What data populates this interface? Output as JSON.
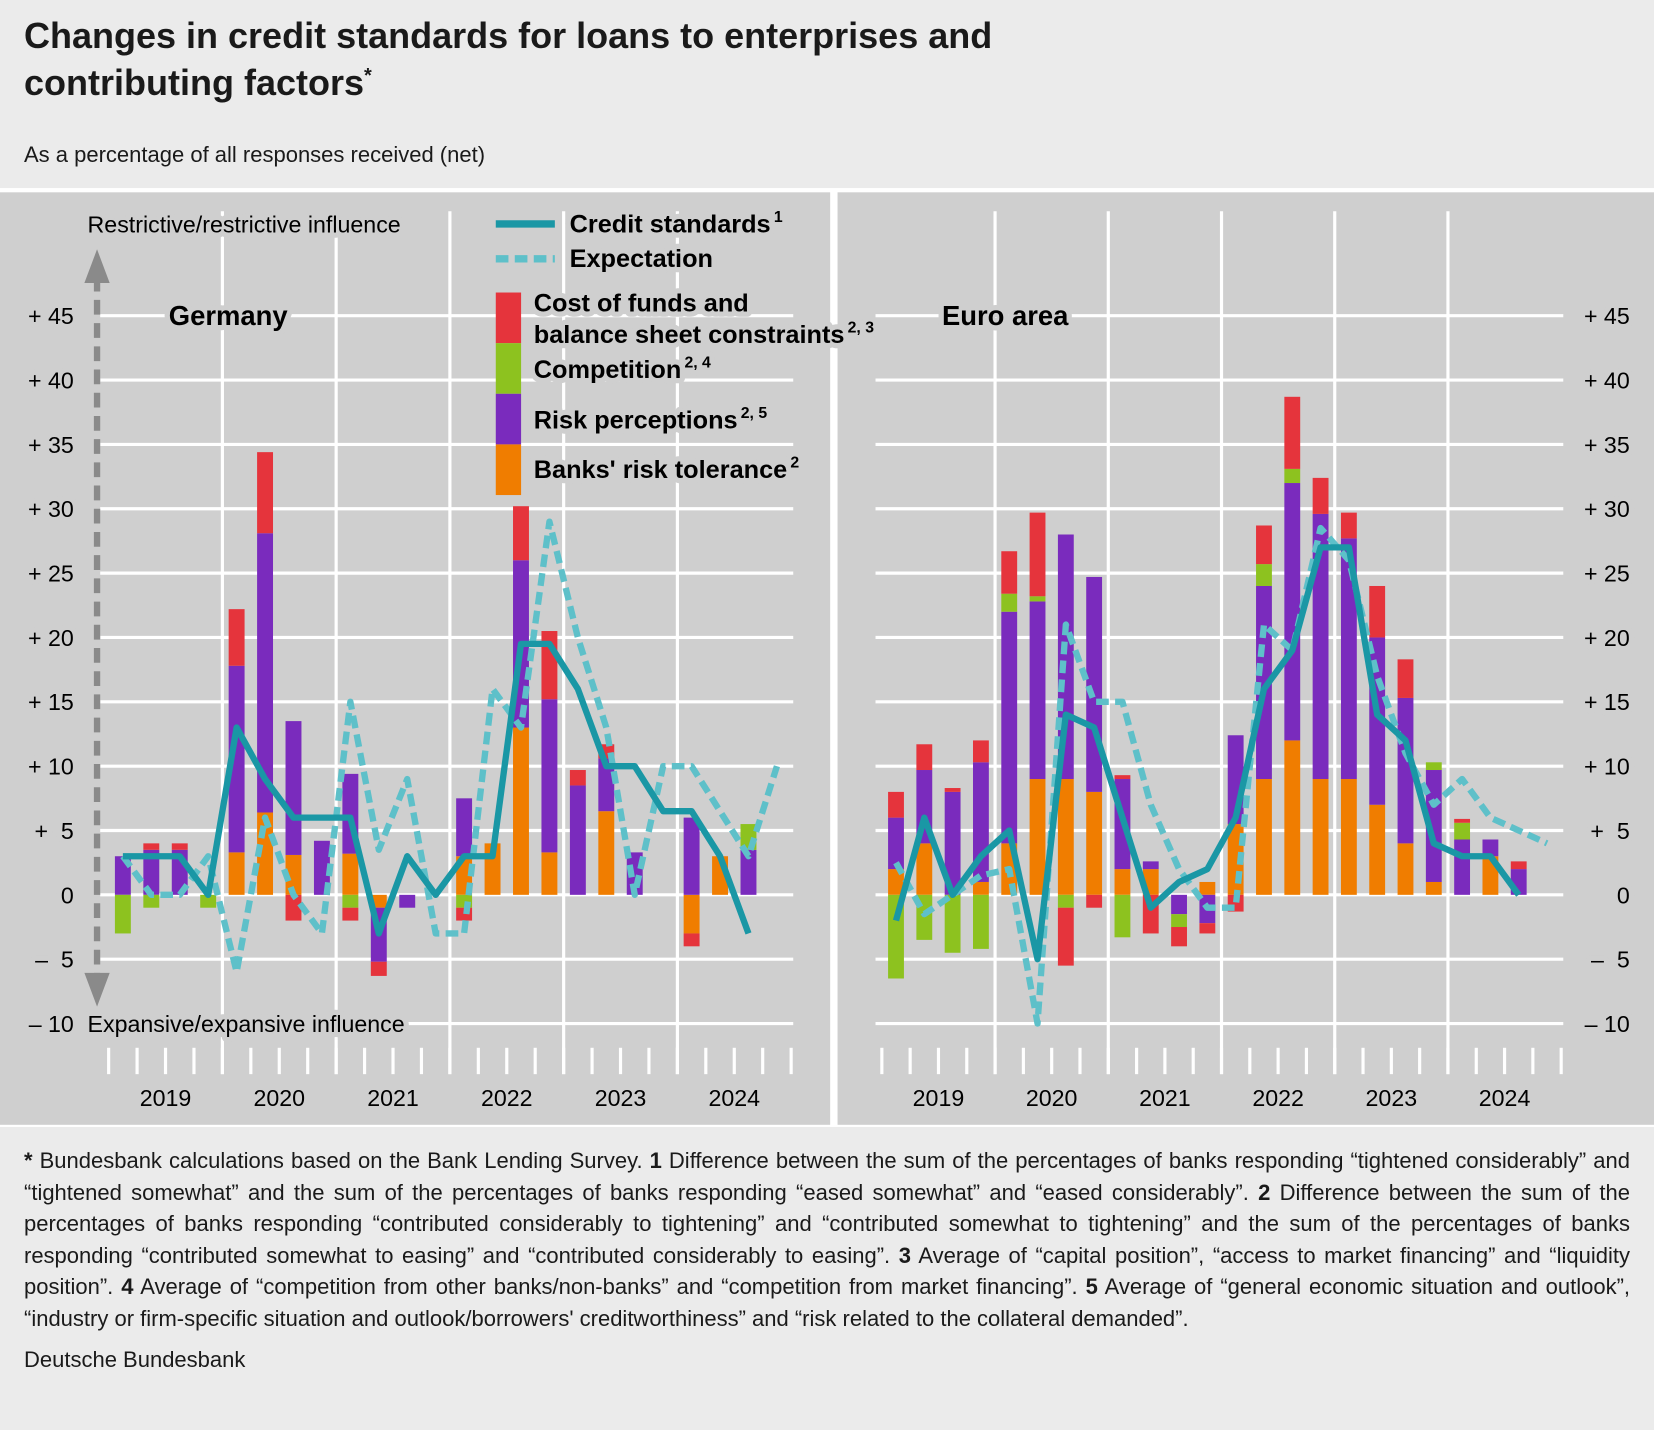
{
  "title": "Changes in credit standards for loans to enterprises and contributing factors",
  "title_marker": "*",
  "subtitle": "As a percentage of all responses received (net)",
  "chart_data": [
    {
      "type": "bar",
      "stacked": true,
      "title": "Germany",
      "annotations": {
        "top": "Restrictive/restrictive influence",
        "bottom": "Expansive/expansive influence"
      },
      "categories": [
        null,
        null,
        null,
        null,
        null,
        null,
        null,
        null,
        null,
        null,
        null,
        null,
        null,
        null,
        null,
        null,
        null,
        null,
        null,
        null,
        null,
        null,
        null,
        null
      ],
      "x_groups": [
        "2019",
        "2020",
        "2021",
        "2022",
        "2023",
        "2024"
      ],
      "ylim": [
        -12,
        54
      ],
      "yticks": [
        {
          "value": 45,
          "label": "+ 45"
        },
        {
          "value": 40,
          "label": "+ 40"
        },
        {
          "value": 35,
          "label": "+ 35"
        },
        {
          "value": 30,
          "label": "+ 30"
        },
        {
          "value": 25,
          "label": "+ 25"
        },
        {
          "value": 20,
          "label": "+ 20"
        },
        {
          "value": 15,
          "label": "+ 15"
        },
        {
          "value": 10,
          "label": "+ 10"
        },
        {
          "value": 5,
          "label": "+  5"
        },
        0,
        {
          "value": -5,
          "label": "–  5"
        },
        {
          "value": -10,
          "label": "– 10"
        }
      ],
      "grid": true,
      "series": [
        {
          "name": "Credit standards",
          "note": "1",
          "kind": "line",
          "color": "#1a97a5",
          "values": [
            3,
            3,
            3,
            0,
            13,
            9,
            6,
            6,
            6,
            -3,
            3,
            0,
            3,
            3,
            19.5,
            19.5,
            16,
            10,
            10,
            6.5,
            6.5,
            3,
            -3,
            null
          ]
        },
        {
          "name": "Expectation",
          "kind": "dashed",
          "color": "#5ec0c9",
          "values": [
            3,
            0,
            0,
            3,
            -6,
            6,
            0,
            -3,
            15,
            3.5,
            9,
            -3,
            -3,
            16,
            13,
            29,
            20,
            13,
            0,
            10,
            10,
            6.5,
            3,
            10
          ]
        },
        {
          "name": "Cost of funds and balance sheet constraints",
          "note": "2, 3",
          "kind": "bar",
          "color": "#e5343c",
          "values": [
            0,
            0.5,
            0.5,
            0,
            4.4,
            6.3,
            -2,
            0,
            -1,
            -1.1,
            0,
            0,
            -1,
            0,
            4.2,
            5.3,
            1.2,
            1.1,
            0,
            0,
            -1,
            0,
            0,
            null
          ]
        },
        {
          "name": "Competition",
          "note": "2, 4",
          "kind": "bar",
          "color": "#8dc21f",
          "values": [
            -3,
            -1,
            0,
            -1,
            0,
            0,
            0,
            0,
            -1,
            0,
            0,
            0,
            -1,
            0,
            0,
            0,
            0,
            0,
            0,
            0,
            0,
            0,
            2,
            null
          ]
        },
        {
          "name": "Risk perceptions",
          "note": "2, 5",
          "kind": "bar",
          "color": "#7a2bbd",
          "values": [
            3,
            3.5,
            3.5,
            0,
            14.5,
            21.7,
            10.4,
            4.2,
            6.2,
            -4.2,
            -1,
            0,
            4.5,
            0,
            13,
            11.9,
            8.5,
            4.1,
            3.3,
            0,
            6,
            0,
            3.5,
            null
          ]
        },
        {
          "name": "Banks' risk tolerance",
          "note": "2",
          "kind": "bar",
          "color": "#f07d00",
          "values": [
            0,
            0,
            0,
            0,
            3.3,
            6.4,
            3.1,
            0,
            3.2,
            -1,
            0,
            0,
            3,
            4,
            13,
            3.3,
            0,
            6.5,
            0,
            0,
            -3,
            3,
            0,
            null
          ]
        }
      ]
    },
    {
      "type": "bar",
      "stacked": true,
      "title": "Euro area",
      "categories": [
        null,
        null,
        null,
        null,
        null,
        null,
        null,
        null,
        null,
        null,
        null,
        null,
        null,
        null,
        null,
        null,
        null,
        null,
        null,
        null,
        null,
        null,
        null,
        null
      ],
      "x_groups": [
        "2019",
        "2020",
        "2021",
        "2022",
        "2023",
        "2024"
      ],
      "ylim": [
        -12,
        54
      ],
      "yticks": [
        {
          "value": 45,
          "label": "+ 45"
        },
        {
          "value": 40,
          "label": "+ 40"
        },
        {
          "value": 35,
          "label": "+ 35"
        },
        {
          "value": 30,
          "label": "+ 30"
        },
        {
          "value": 25,
          "label": "+ 25"
        },
        {
          "value": 20,
          "label": "+ 20"
        },
        {
          "value": 15,
          "label": "+ 15"
        },
        {
          "value": 10,
          "label": "+ 10"
        },
        {
          "value": 5,
          "label": "+  5"
        },
        0,
        {
          "value": -5,
          "label": "–  5"
        },
        {
          "value": -10,
          "label": "– 10"
        }
      ],
      "grid": true,
      "series": [
        {
          "kind": "line",
          "color": "#1a97a5",
          "values": [
            -2,
            6,
            0,
            3,
            5,
            -5,
            14,
            13,
            6,
            -1,
            1,
            2,
            6,
            16,
            19,
            27,
            27,
            14,
            12,
            4,
            3,
            3,
            0,
            null
          ]
        },
        {
          "kind": "dashed",
          "color": "#5ec0c9",
          "values": [
            2.5,
            -1.5,
            0,
            1.5,
            2,
            -10,
            21,
            15,
            15,
            7,
            2,
            -1,
            -1,
            21,
            19,
            28.5,
            26,
            17,
            11,
            7,
            9,
            6,
            5,
            4
          ]
        },
        {
          "kind": "bar",
          "color": "#e5343c",
          "values": [
            2,
            2,
            0.3,
            1.7,
            3.3,
            6.5,
            -4.5,
            -1,
            0.3,
            -3,
            -1.5,
            -0.8,
            -1.3,
            3,
            5.6,
            2.8,
            2,
            4,
            3,
            0,
            0.3,
            0,
            0.6,
            null
          ]
        },
        {
          "kind": "bar",
          "color": "#8dc21f",
          "values": [
            -6.5,
            -3.5,
            -4.5,
            -4.2,
            1.4,
            0.4,
            -1,
            0,
            -3.3,
            0,
            -1,
            0,
            0,
            1.7,
            1.1,
            0,
            0,
            0,
            0,
            0.6,
            1.3,
            0,
            0,
            null
          ]
        },
        {
          "kind": "bar",
          "color": "#7a2bbd",
          "values": [
            4,
            5.7,
            8,
            9.3,
            18,
            13.8,
            19,
            16.7,
            7,
            0.6,
            -1.5,
            -2.2,
            6.9,
            15,
            20,
            20.6,
            18.7,
            13,
            11.3,
            8.7,
            4.3,
            1.3,
            2,
            null
          ]
        },
        {
          "kind": "bar",
          "color": "#f07d00",
          "values": [
            2,
            4,
            0,
            1,
            4,
            9,
            9,
            8,
            2,
            2,
            0,
            1,
            5.5,
            9,
            12,
            9,
            9,
            7,
            4,
            1,
            0,
            3,
            0,
            null
          ]
        }
      ]
    }
  ],
  "footnotes": [
    {
      "marker": "*",
      "text": "Bundesbank calculations based on the Bank Lending Survey."
    },
    {
      "marker": "1",
      "text": "Difference between the sum of the percentages of banks responding “tightened considerably” and “tightened somewhat” and the sum of the percentages of banks responding “eased somewhat” and “eased considerably”."
    },
    {
      "marker": "2",
      "text": "Difference between the sum of the percentages of banks responding “contributed considerably to tightening” and “contributed somewhat to tightening” and the sum of the percentages of banks responding “contributed somewhat to easing” and “contributed considerably to easing”."
    },
    {
      "marker": "3",
      "text": "Average of “capital position”, “access to market financing” and “liquidity position”."
    },
    {
      "marker": "4",
      "text": "Average of “competition from other banks/non-banks” and “competition from market financing”."
    },
    {
      "marker": "5",
      "text": "Average of “general economic situation and outlook”, “industry or firm-specific situation and outlook/borrowers' creditworthiness” and “risk related to the collateral demanded”."
    }
  ],
  "source": "Deutsche Bundesbank"
}
